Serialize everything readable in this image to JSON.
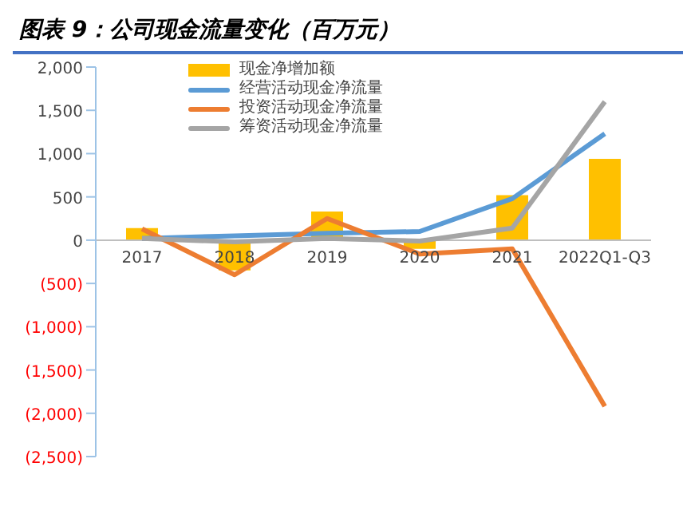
{
  "chart_data": {
    "type": "bar",
    "title": "图表 9：公司现金流量变化（百万元）",
    "categories": [
      "2017",
      "2018",
      "2019",
      "2020",
      "2021",
      "2022Q1-Q3"
    ],
    "series": [
      {
        "name": "现金净增加额",
        "color": "#ffc000",
        "values": [
          140,
          -350,
          330,
          -100,
          520,
          940
        ]
      },
      {
        "name": "经营活动现金净流量",
        "type": "line",
        "color": "#5b9bd5",
        "values": [
          20,
          50,
          80,
          100,
          480,
          1230
        ]
      },
      {
        "name": "投资活动现金净流量",
        "type": "line",
        "color": "#ed7d31",
        "values": [
          130,
          -400,
          250,
          -160,
          -100,
          -1920
        ]
      },
      {
        "name": "筹资活动现金净流量",
        "type": "line",
        "color": "#a5a5a5",
        "values": [
          20,
          -20,
          20,
          -10,
          140,
          1600
        ]
      }
    ],
    "ylim": [
      -2500,
      2000
    ],
    "yticks": [
      {
        "value": -2500,
        "label": "(2,500)"
      },
      {
        "value": -2000,
        "label": "(2,000)"
      },
      {
        "value": -1500,
        "label": "(1,500)"
      },
      {
        "value": -1000,
        "label": "(1,000)"
      },
      {
        "value": -500,
        "label": "(500)"
      },
      0,
      {
        "value": 500,
        "label": "500"
      },
      {
        "value": 1000,
        "label": "1,000"
      },
      {
        "value": 1500,
        "label": "1,500"
      },
      {
        "value": 2000,
        "label": "2,000"
      }
    ],
    "grid": false,
    "legend": "top left",
    "marker": "none",
    "line_style": "solid"
  }
}
